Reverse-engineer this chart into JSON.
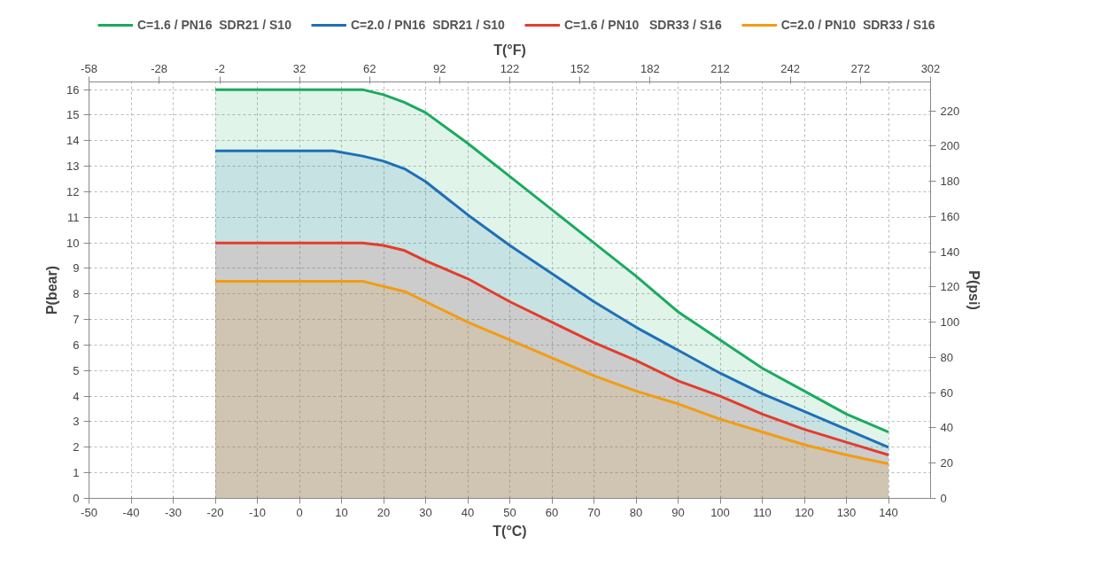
{
  "chart_data": {
    "type": "area",
    "xlabel": "T(°C)",
    "x2label": "T(°F)",
    "ylabel": "P(bear)",
    "y2label": "P(psi)",
    "x": [
      -20,
      8,
      15,
      20,
      25,
      30,
      40,
      50,
      60,
      70,
      80,
      90,
      100,
      110,
      120,
      130,
      140
    ],
    "series": [
      {
        "name": "C=1.6 / PN16  SDR21 / S10",
        "color": "#1aab5f",
        "values": [
          16,
          16,
          16,
          15.8,
          15.5,
          15.1,
          13.9,
          12.6,
          11.3,
          10.0,
          8.7,
          7.3,
          6.2,
          5.1,
          4.2,
          3.3,
          2.6
        ]
      },
      {
        "name": "C=2.0 / PN16  SDR21 / S10",
        "color": "#1f6fb8",
        "values": [
          13.6,
          13.6,
          13.4,
          13.2,
          12.9,
          12.4,
          11.1,
          9.9,
          8.8,
          7.7,
          6.7,
          5.8,
          4.9,
          4.1,
          3.4,
          2.7,
          2.0
        ]
      },
      {
        "name": "C=1.6 / PN10   SDR33 / S16",
        "color": "#e53b2c",
        "values": [
          10,
          10,
          10,
          9.9,
          9.7,
          9.3,
          8.6,
          7.7,
          6.9,
          6.1,
          5.4,
          4.6,
          4.0,
          3.3,
          2.7,
          2.2,
          1.7
        ]
      },
      {
        "name": "C=2.0 / PN10  SDR33 / S16",
        "color": "#f39c12",
        "values": [
          8.5,
          8.5,
          8.5,
          8.3,
          8.1,
          7.7,
          6.9,
          6.2,
          5.5,
          4.8,
          4.2,
          3.7,
          3.1,
          2.6,
          2.1,
          1.7,
          1.35
        ]
      }
    ],
    "xlim": [
      -50,
      150
    ],
    "xticks": [
      -50,
      -40,
      -30,
      -20,
      -10,
      0,
      10,
      20,
      30,
      40,
      50,
      60,
      70,
      80,
      90,
      100,
      110,
      120,
      130,
      140
    ],
    "x2lim": [
      -58,
      302
    ],
    "x2ticks": [
      -58,
      -28,
      -2,
      32,
      62,
      92,
      122,
      152,
      182,
      212,
      242,
      272,
      302
    ],
    "ylim": [
      0,
      16.3
    ],
    "yticks": [
      0,
      1,
      2,
      3,
      4,
      5,
      6,
      7,
      8,
      9,
      10,
      11,
      12,
      13,
      14,
      15,
      16
    ],
    "y2lim": [
      0,
      236.35
    ],
    "y2ticks": [
      0,
      20,
      40,
      60,
      80,
      100,
      120,
      140,
      160,
      180,
      200,
      220
    ],
    "grid": true,
    "legend": "top",
    "line_style": "solid"
  }
}
